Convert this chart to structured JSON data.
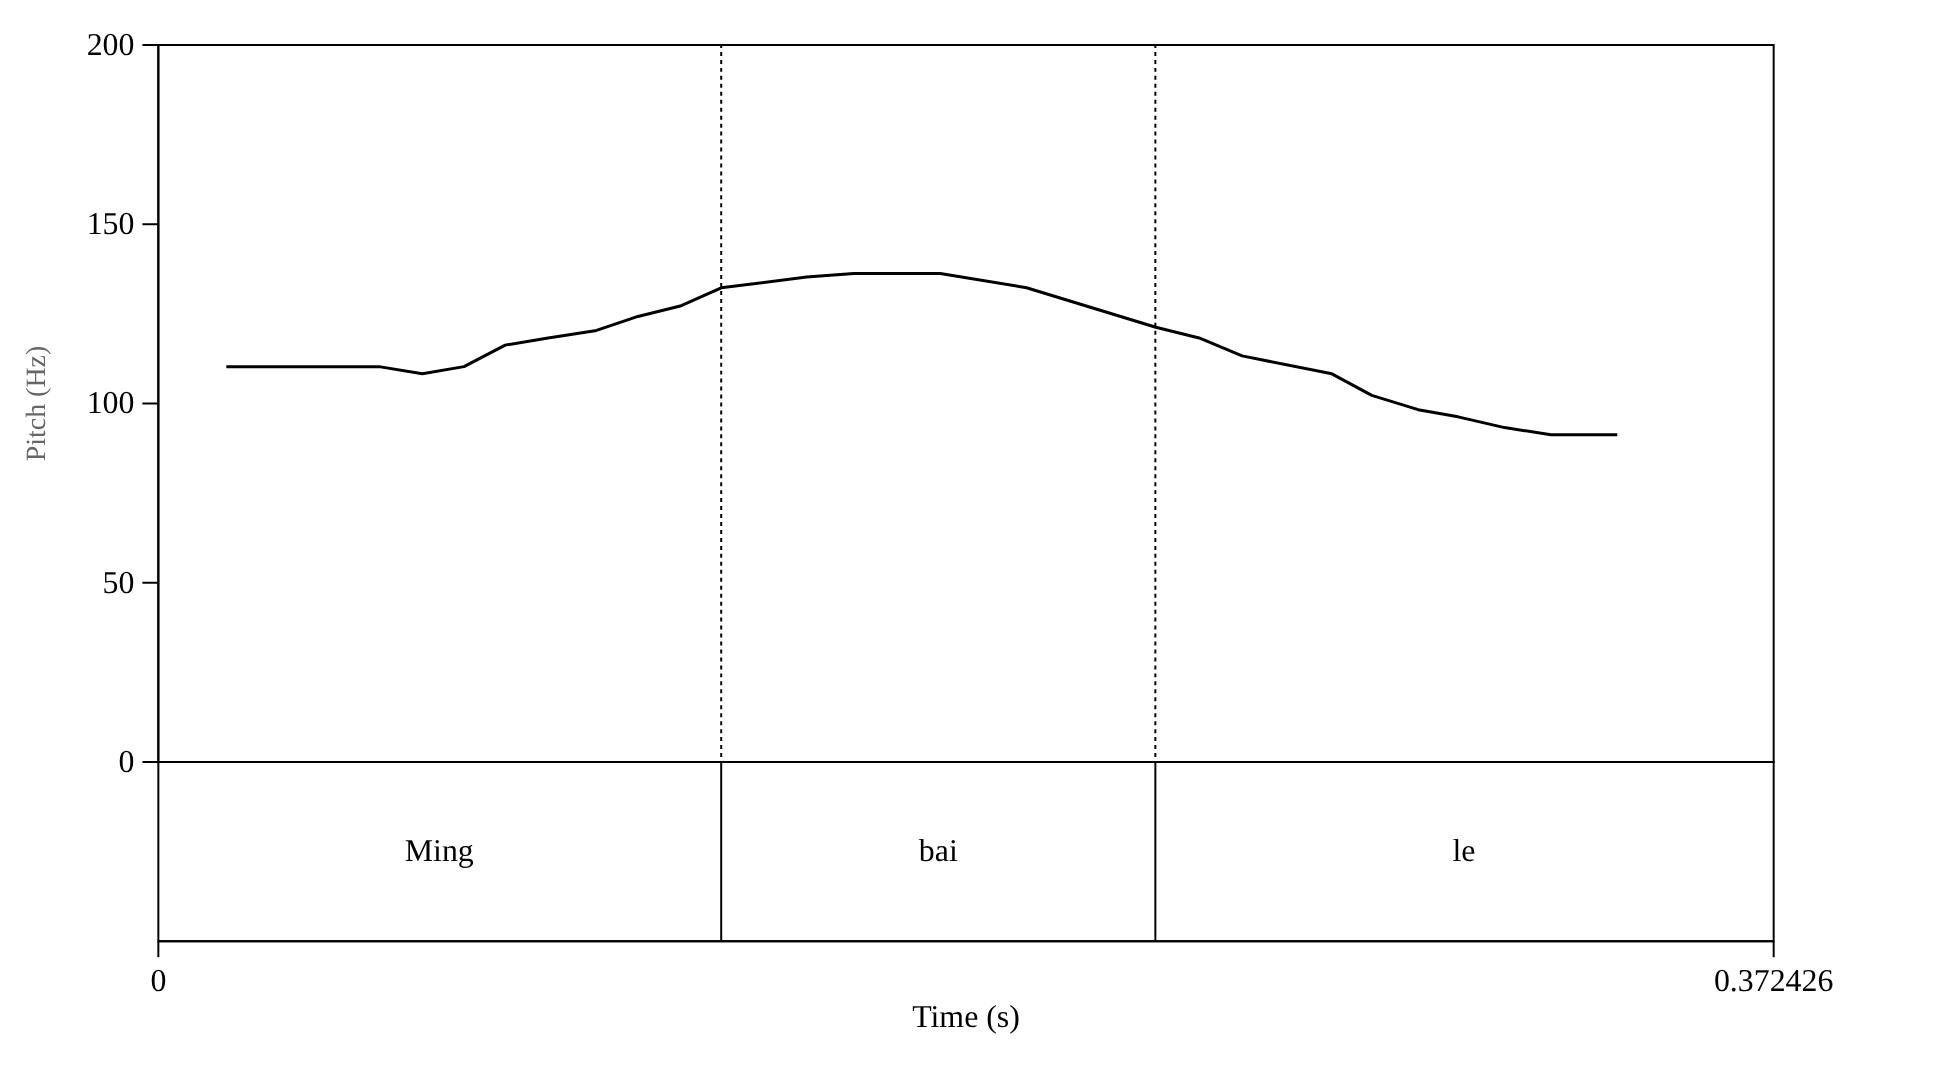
{
  "chart_data": {
    "type": "line",
    "xlabel": "Time (s)",
    "ylabel": "Pitch (Hz)",
    "x": [
      0.0159,
      0.0511,
      0.0611,
      0.0707,
      0.0802,
      0.0901,
      0.1009,
      0.1108,
      0.1208,
      0.13,
      0.1497,
      0.1606,
      0.1805,
      0.2004,
      0.2302,
      0.2402,
      0.2501,
      0.2708,
      0.28,
      0.2907,
      0.2999,
      0.3106,
      0.3213,
      0.3366
    ],
    "series": [
      {
        "color": "#000000",
        "values": [
          110,
          110,
          108,
          110,
          116,
          118,
          120,
          124,
          127,
          132,
          135,
          136,
          136,
          132,
          121,
          118,
          113,
          108,
          102,
          98,
          96,
          93,
          91,
          91
        ]
      }
    ],
    "xlim": [
      0,
      0.372426
    ],
    "xticks": [
      0,
      {
        "value": 0.372426,
        "label": "0.372426"
      }
    ],
    "ylim": [
      0,
      200
    ],
    "yticks": [
      0,
      50,
      100,
      150,
      200
    ],
    "ref_lines": [
      {
        "axis": "x",
        "value": 0.13,
        "line_style": "dotted"
      },
      {
        "axis": "x",
        "value": 0.2301,
        "line_style": "dotted"
      }
    ],
    "annotations": [
      "Ming",
      "bai",
      "le"
    ],
    "grid": false,
    "marker": "none",
    "line_style": "solid",
    "tick_labels": "xy"
  }
}
